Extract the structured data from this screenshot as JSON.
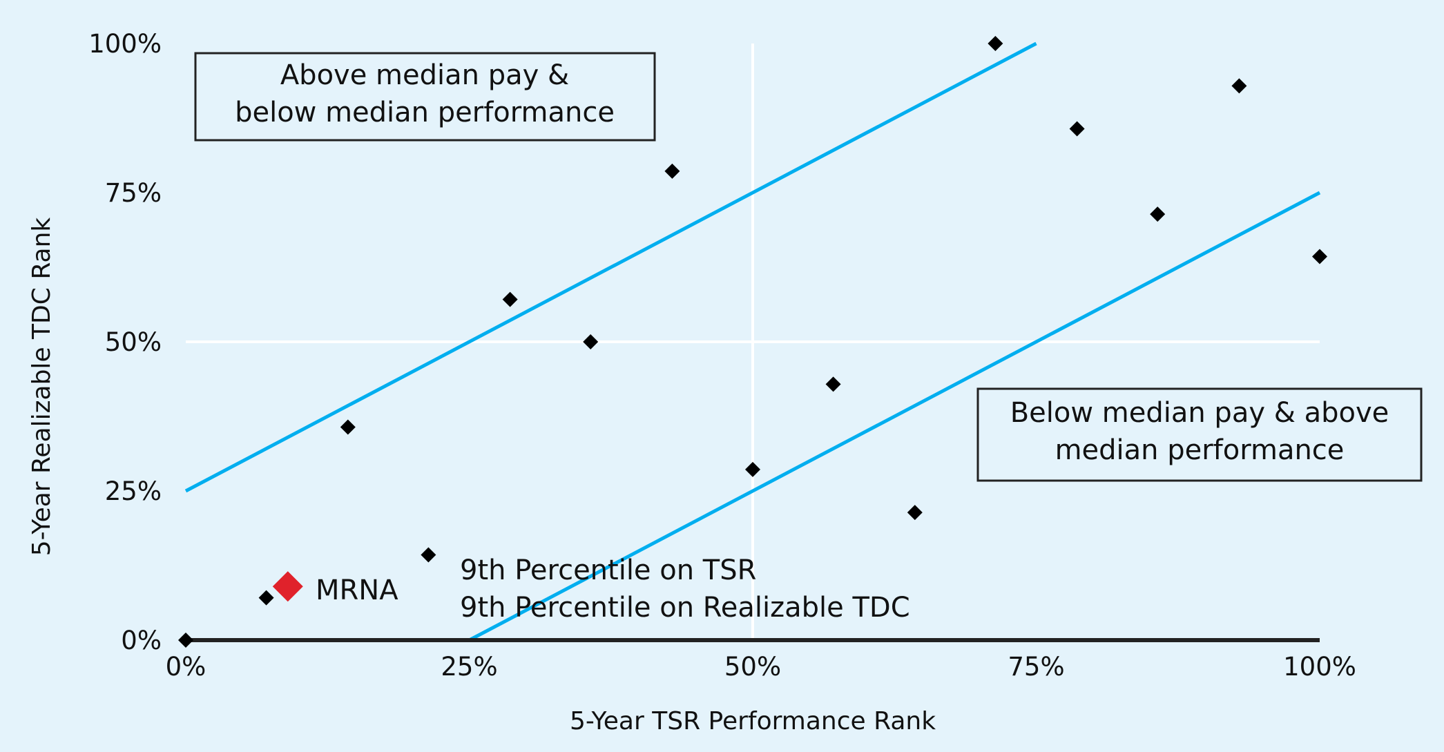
{
  "chart_data": {
    "type": "scatter",
    "xlabel": "5-Year TSR Performance Rank",
    "ylabel": "5-Year Realizable TDC Rank",
    "xlim": [
      0,
      100
    ],
    "ylim": [
      0,
      100
    ],
    "x_ticks": [
      "0%",
      "25%",
      "50%",
      "75%",
      "100%"
    ],
    "y_ticks": [
      "0%",
      "25%",
      "50%",
      "75%",
      "100%"
    ],
    "grid": "median lines at 50% only",
    "points": [
      {
        "x": 0,
        "y": 0
      },
      {
        "x": 7.1,
        "y": 7.1
      },
      {
        "x": 14.3,
        "y": 35.7
      },
      {
        "x": 21.4,
        "y": 14.3
      },
      {
        "x": 28.6,
        "y": 57.1
      },
      {
        "x": 35.7,
        "y": 50
      },
      {
        "x": 42.9,
        "y": 78.6
      },
      {
        "x": 50,
        "y": 28.6
      },
      {
        "x": 57.1,
        "y": 42.9
      },
      {
        "x": 64.3,
        "y": 21.4
      },
      {
        "x": 71.4,
        "y": 100
      },
      {
        "x": 78.6,
        "y": 85.7
      },
      {
        "x": 85.7,
        "y": 71.4
      },
      {
        "x": 92.9,
        "y": 92.9
      },
      {
        "x": 100,
        "y": 64.3
      }
    ],
    "highlight": {
      "label": "MRNA",
      "x": 9,
      "y": 9,
      "color": "#e0222b",
      "notes": [
        "9th Percentile on TSR",
        "9th Percentile on Realizable TDC"
      ]
    },
    "bands": [
      {
        "from": [
          0,
          25
        ],
        "to": [
          75,
          100
        ]
      },
      {
        "from": [
          25,
          0
        ],
        "to": [
          100,
          75
        ]
      }
    ],
    "band_color": "#00aeef",
    "point_color": "#000000",
    "background": "#e4f3fb",
    "annotations": {
      "upper_left": [
        "Above median pay &",
        "below median performance"
      ],
      "lower_right": [
        "Below median pay & above",
        "median performance"
      ]
    }
  }
}
